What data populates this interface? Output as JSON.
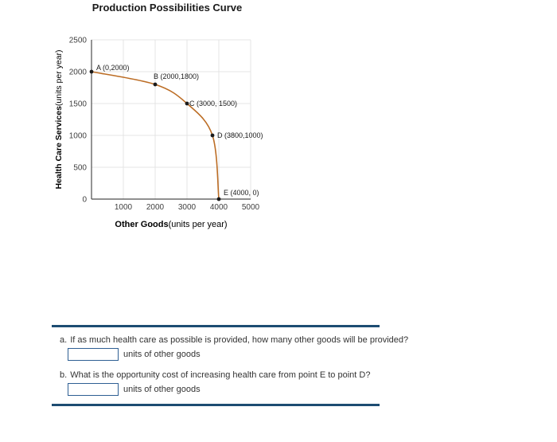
{
  "chart": {
    "title": "Production Possibilities Curve"
  },
  "chart_data": {
    "type": "line",
    "title": "Production Possibilities Curve",
    "xlabel": "Other Goods(units per year)",
    "ylabel": "Health Care Services(units per year)",
    "xlabel_bold": "Other Goods",
    "xlabel_units": "(units per year)",
    "ylabel_bold": "Health Care Services",
    "ylabel_units": "(units per year)",
    "xlim": [
      0,
      5000
    ],
    "ylim": [
      0,
      2500
    ],
    "x_ticks": [
      1000,
      2000,
      3000,
      4000,
      5000
    ],
    "y_ticks": [
      0,
      500,
      1000,
      1500,
      2000,
      2500
    ],
    "grid": true,
    "line_color": "#bc6d25",
    "points": [
      {
        "label": "A (0,2000)",
        "x": 0,
        "y": 2000
      },
      {
        "label": "B (2000,1800)",
        "x": 2000,
        "y": 1800
      },
      {
        "label": "C (3000, 1500)",
        "x": 3000,
        "y": 1500
      },
      {
        "label": "D (3800,1000)",
        "x": 3800,
        "y": 1000
      },
      {
        "label": "E (4000, 0)",
        "x": 4000,
        "y": 0
      }
    ]
  },
  "questions": {
    "a_label": "a.",
    "a_text": "If as much health care as possible is provided, how many other goods will be provided?",
    "a_input_value": "",
    "a_unit": "units of other goods",
    "b_label": "b.",
    "b_text": "What is the opportunity cost of increasing health care from point E to point D?",
    "b_input_value": "",
    "b_unit": "units of other goods"
  },
  "colors": {
    "divider": "#1d4c72",
    "input_border": "#2e5f93",
    "curve": "#bc6d25"
  }
}
